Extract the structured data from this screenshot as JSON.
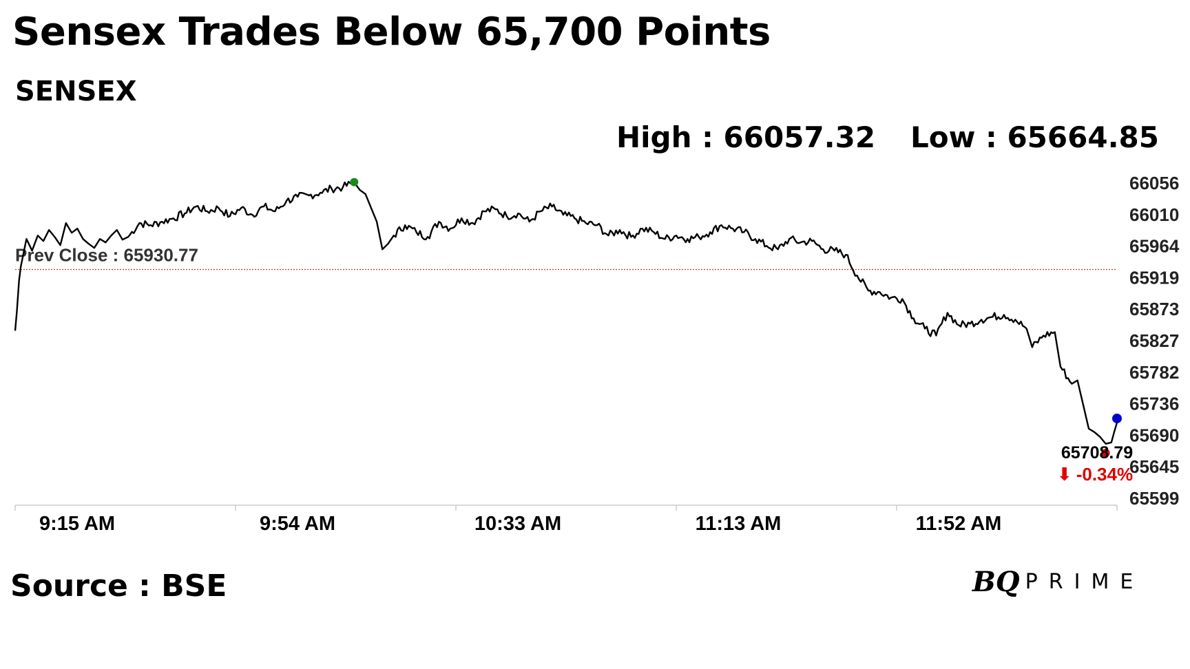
{
  "headline": "Sensex Trades Below 65,700 Points",
  "index_name": "SENSEX",
  "high_text": "High : 66057.32",
  "low_text": "Low : 65664.85",
  "source": "Source : BSE",
  "brand": {
    "bq": "BQ",
    "prime": "PRIME"
  },
  "colors": {
    "line": "#000000",
    "prev_close": "#c0392b",
    "high_marker": "#1a8a1a",
    "last_marker": "#0000cc",
    "low_marker": "#e00000",
    "change": "#e00000"
  },
  "chart_data": {
    "type": "line",
    "title": "SENSEX",
    "prev_close": 65930.77,
    "prev_close_label": "Prev Close : 65930.77",
    "high": 66057.32,
    "low": 65664.85,
    "last_value_label": "65708.79",
    "change_label": "-0.34%",
    "change_arrow": "⬇",
    "ylim": [
      65599,
      66056
    ],
    "y_ticks": [
      "66056",
      "66010",
      "65964",
      "65919",
      "65873",
      "65827",
      "65782",
      "65736",
      "65690",
      "65645",
      "65599"
    ],
    "x_ticks": [
      "9:15 AM",
      "9:54 AM",
      "10:33 AM",
      "11:13 AM",
      "11:52 AM"
    ],
    "x_unit": "minutes since 9:15 AM",
    "xlim": [
      0,
      195
    ],
    "series": [
      {
        "name": "SENSEX",
        "points": [
          [
            0,
            65842
          ],
          [
            0.3,
            65870
          ],
          [
            0.7,
            65915
          ],
          [
            1,
            65935
          ],
          [
            2,
            65975
          ],
          [
            3,
            65958
          ],
          [
            4,
            65980
          ],
          [
            5,
            65972
          ],
          [
            6,
            65988
          ],
          [
            7,
            65978
          ],
          [
            8,
            65966
          ],
          [
            9,
            65998
          ],
          [
            10,
            65984
          ],
          [
            11,
            65990
          ],
          [
            12,
            65975
          ],
          [
            13,
            65968
          ],
          [
            14,
            65962
          ],
          [
            15,
            65975
          ],
          [
            16,
            65970
          ],
          [
            17,
            65980
          ],
          [
            18,
            65988
          ],
          [
            19,
            65974
          ],
          [
            20,
            65978
          ],
          [
            22,
            65998
          ],
          [
            24,
            65995
          ],
          [
            26,
            66000
          ],
          [
            28,
            66005
          ],
          [
            30,
            66012
          ],
          [
            32,
            66022
          ],
          [
            34,
            66015
          ],
          [
            36,
            66020
          ],
          [
            38,
            66008
          ],
          [
            40,
            66020
          ],
          [
            42,
            66010
          ],
          [
            44,
            66022
          ],
          [
            46,
            66015
          ],
          [
            48,
            66030
          ],
          [
            50,
            66036
          ],
          [
            52,
            66038
          ],
          [
            54,
            66042
          ],
          [
            56,
            66048
          ],
          [
            58,
            66050
          ],
          [
            60,
            66057
          ],
          [
            61,
            66046
          ],
          [
            62,
            66040
          ],
          [
            63,
            66020
          ],
          [
            64,
            66000
          ],
          [
            65,
            65960
          ],
          [
            66,
            65968
          ],
          [
            67,
            65980
          ],
          [
            69,
            65995
          ],
          [
            71,
            65985
          ],
          [
            73,
            65978
          ],
          [
            75,
            66000
          ],
          [
            77,
            65990
          ],
          [
            79,
            66005
          ],
          [
            81,
            65998
          ],
          [
            83,
            66015
          ],
          [
            85,
            66018
          ],
          [
            87,
            66008
          ],
          [
            89,
            66012
          ],
          [
            91,
            66000
          ],
          [
            93,
            66015
          ],
          [
            95,
            66022
          ],
          [
            97,
            66010
          ],
          [
            99,
            66005
          ],
          [
            101,
            65998
          ],
          [
            103,
            65995
          ],
          [
            105,
            65980
          ],
          [
            107,
            65988
          ],
          [
            109,
            65978
          ],
          [
            111,
            65990
          ],
          [
            113,
            65985
          ],
          [
            115,
            65975
          ],
          [
            117,
            65980
          ],
          [
            119,
            65975
          ],
          [
            121,
            65978
          ],
          [
            123,
            65985
          ],
          [
            125,
            65995
          ],
          [
            127,
            65990
          ],
          [
            129,
            65985
          ],
          [
            131,
            65975
          ],
          [
            133,
            65965
          ],
          [
            135,
            65960
          ],
          [
            137,
            65975
          ],
          [
            139,
            65970
          ],
          [
            141,
            65972
          ],
          [
            143,
            65960
          ],
          [
            145,
            65958
          ],
          [
            147,
            65952
          ],
          [
            149,
            65922
          ],
          [
            151,
            65900
          ],
          [
            153,
            65898
          ],
          [
            155,
            65890
          ],
          [
            157,
            65888
          ],
          [
            159,
            65860
          ],
          [
            161,
            65845
          ],
          [
            163,
            65835
          ],
          [
            165,
            65868
          ],
          [
            167,
            65850
          ],
          [
            169,
            65852
          ],
          [
            171,
            65858
          ],
          [
            173,
            65862
          ],
          [
            175,
            65865
          ],
          [
            177,
            65858
          ],
          [
            179,
            65845
          ],
          [
            180,
            65818
          ],
          [
            182,
            65835
          ],
          [
            184,
            65840
          ],
          [
            185,
            65790
          ],
          [
            187,
            65765
          ],
          [
            188,
            65770
          ],
          [
            189,
            65735
          ],
          [
            190,
            65700
          ],
          [
            191,
            65695
          ],
          [
            192,
            65688
          ],
          [
            193,
            65678
          ],
          [
            194,
            65680
          ],
          [
            194.5,
            65695
          ],
          [
            195,
            65708.79
          ]
        ]
      }
    ]
  }
}
